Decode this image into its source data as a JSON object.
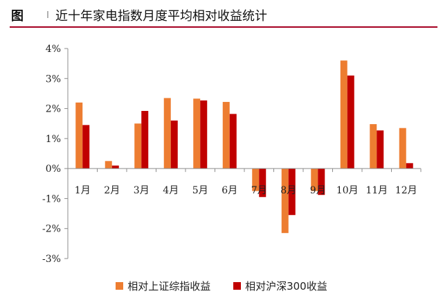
{
  "header": {
    "fig_label": "图",
    "title": "近十年家电指数月度平均相对收益统计"
  },
  "chart_data": {
    "type": "bar",
    "title": "近十年家电指数月度平均相对收益统计",
    "xlabel": "",
    "ylabel": "",
    "categories": [
      "1月",
      "2月",
      "3月",
      "4月",
      "5月",
      "6月",
      "7月",
      "8月",
      "9月",
      "10月",
      "11月",
      "12月"
    ],
    "yticks": [
      -3,
      -2,
      -1,
      0,
      1,
      2,
      3,
      4
    ],
    "ytick_labels": [
      "-3%",
      "-2%",
      "-1%",
      "0%",
      "1%",
      "2%",
      "3%",
      "4%"
    ],
    "ylim": [
      -3,
      4
    ],
    "unit": "%",
    "grid": false,
    "legend_position": "bottom",
    "series": [
      {
        "name": "相对上证综指收益",
        "color": "#ed7d31",
        "values": [
          2.2,
          0.25,
          1.5,
          2.35,
          2.33,
          2.22,
          -0.75,
          -2.15,
          -0.75,
          3.6,
          1.48,
          1.35
        ]
      },
      {
        "name": "相对沪深300收益",
        "color": "#c00000",
        "values": [
          1.45,
          0.1,
          1.92,
          1.6,
          2.27,
          1.82,
          -0.95,
          -1.55,
          -0.88,
          3.1,
          1.27,
          0.18
        ]
      }
    ]
  }
}
